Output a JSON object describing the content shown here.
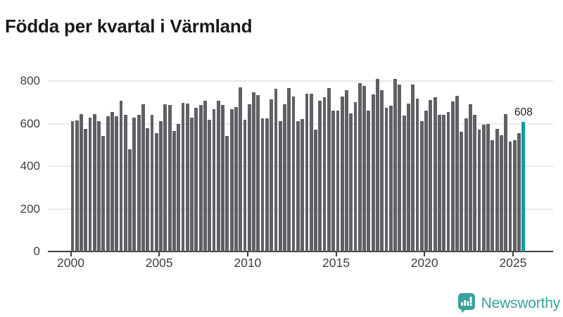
{
  "title": "Födda per kvartal i Värmland",
  "chart_data": {
    "type": "bar",
    "title": "Födda per kvartal i Värmland",
    "xlabel": "",
    "ylabel": "",
    "ylim": [
      0,
      800
    ],
    "grid": true,
    "legend": "none",
    "y_tick_labels": [
      "0",
      "200",
      "400",
      "600",
      "800"
    ],
    "y_tick_values": [
      0,
      200,
      400,
      600,
      800
    ],
    "x_tick_labels": [
      "2000",
      "2005",
      "2010",
      "2015",
      "2020",
      "2025"
    ],
    "bar_color": "#5e6065",
    "highlight": {
      "index": 102,
      "label": "608",
      "color": "#0f9e9c"
    },
    "categories": [
      "2000 Q1",
      "2000 Q2",
      "2000 Q3",
      "2000 Q4",
      "2001 Q1",
      "2001 Q2",
      "2001 Q3",
      "2001 Q4",
      "2002 Q1",
      "2002 Q2",
      "2002 Q3",
      "2002 Q4",
      "2003 Q1",
      "2003 Q2",
      "2003 Q3",
      "2003 Q4",
      "2004 Q1",
      "2004 Q2",
      "2004 Q3",
      "2004 Q4",
      "2005 Q1",
      "2005 Q2",
      "2005 Q3",
      "2005 Q4",
      "2006 Q1",
      "2006 Q2",
      "2006 Q3",
      "2006 Q4",
      "2007 Q1",
      "2007 Q2",
      "2007 Q3",
      "2007 Q4",
      "2008 Q1",
      "2008 Q2",
      "2008 Q3",
      "2008 Q4",
      "2009 Q1",
      "2009 Q2",
      "2009 Q3",
      "2009 Q4",
      "2010 Q1",
      "2010 Q2",
      "2010 Q3",
      "2010 Q4",
      "2011 Q1",
      "2011 Q2",
      "2011 Q3",
      "2011 Q4",
      "2012 Q1",
      "2012 Q2",
      "2012 Q3",
      "2012 Q4",
      "2013 Q1",
      "2013 Q2",
      "2013 Q3",
      "2013 Q4",
      "2014 Q1",
      "2014 Q2",
      "2014 Q3",
      "2014 Q4",
      "2015 Q1",
      "2015 Q2",
      "2015 Q3",
      "2015 Q4",
      "2016 Q1",
      "2016 Q2",
      "2016 Q3",
      "2016 Q4",
      "2017 Q1",
      "2017 Q2",
      "2017 Q3",
      "2017 Q4",
      "2018 Q1",
      "2018 Q2",
      "2018 Q3",
      "2018 Q4",
      "2019 Q1",
      "2019 Q2",
      "2019 Q3",
      "2019 Q4",
      "2020 Q1",
      "2020 Q2",
      "2020 Q3",
      "2020 Q4",
      "2021 Q1",
      "2021 Q2",
      "2021 Q3",
      "2021 Q4",
      "2022 Q1",
      "2022 Q2",
      "2022 Q3",
      "2022 Q4",
      "2023 Q1",
      "2023 Q2",
      "2023 Q3",
      "2023 Q4",
      "2024 Q1",
      "2024 Q2",
      "2024 Q3",
      "2024 Q4",
      "2025 Q1",
      "2025 Q2",
      "2025 Q3"
    ],
    "values": [
      612,
      616,
      646,
      576,
      627,
      646,
      613,
      541,
      635,
      656,
      635,
      706,
      640,
      480,
      629,
      640,
      690,
      580,
      640,
      555,
      613,
      690,
      687,
      565,
      598,
      697,
      694,
      629,
      673,
      687,
      706,
      618,
      668,
      706,
      687,
      541,
      668,
      679,
      770,
      618,
      690,
      747,
      734,
      624,
      624,
      714,
      762,
      613,
      690,
      767,
      728,
      613,
      620,
      740,
      741,
      572,
      706,
      723,
      767,
      662,
      662,
      728,
      758,
      648,
      701,
      790,
      776,
      662,
      736,
      809,
      756,
      673,
      684,
      809,
      782,
      637,
      695,
      784,
      717,
      611,
      662,
      710,
      725,
      640,
      640,
      655,
      703,
      732,
      563,
      624,
      692,
      640,
      571,
      596,
      600,
      521,
      574,
      546,
      643,
      516,
      521,
      554,
      608
    ]
  },
  "annotation": {
    "last_value_label": "608"
  },
  "colors": {
    "accent": "#0f9e9c",
    "bar": "#5e6065",
    "grid": "#e9e9e9",
    "axis": "#3d3f44",
    "title": "#1a1a1a",
    "logo": "#38a399"
  },
  "logo": {
    "text": "Newsworthy",
    "icon": "newsworthy-speech-bubble-chart-icon"
  }
}
